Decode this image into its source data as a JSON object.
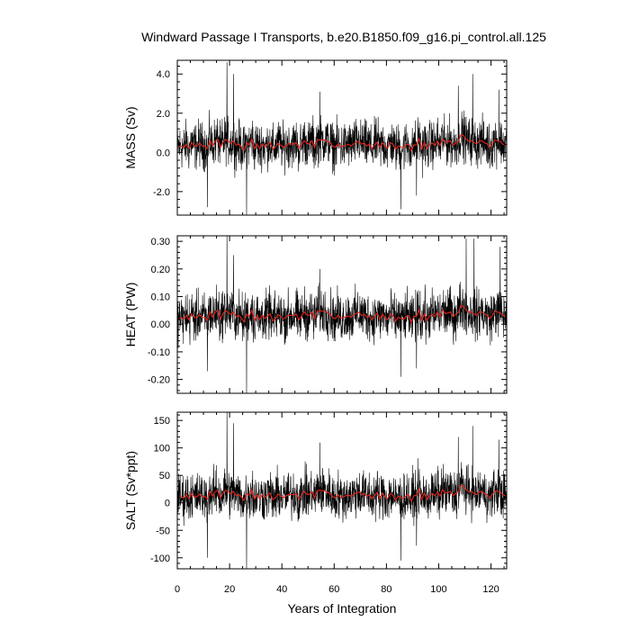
{
  "chart_data": {
    "type": "line",
    "title": "Windward Passage I Transports, b.e20.B1850.f09_g16.pi_control.all.125",
    "xlabel": "Years of Integration",
    "xlim": [
      0,
      126
    ],
    "x_ticks": [
      "0",
      "20",
      "40",
      "60",
      "80",
      "100",
      "120"
    ],
    "grid": false,
    "series_colors": {
      "monthly": "#000000",
      "annual": "#e8241c"
    },
    "panels": [
      {
        "ylabel": "MASS (Sv)",
        "ylim": [
          -3.2,
          4.7
        ],
        "y_ticks": [
          "-2.0",
          "0.0",
          "2.0",
          "4.0"
        ],
        "y_tick_values": [
          -2.0,
          0.0,
          2.0,
          4.0
        ],
        "mean": 0.4,
        "monthly_spread": 0.75,
        "extremes": [
          [
            19.0,
            4.6
          ],
          [
            21.5,
            4.0
          ],
          [
            26.5,
            -3.2
          ],
          [
            11.5,
            -2.8
          ],
          [
            85.5,
            -2.9
          ],
          [
            113.0,
            4.0
          ],
          [
            107.5,
            3.4
          ],
          [
            54.5,
            3.1
          ],
          [
            123.0,
            3.2
          ],
          [
            91.5,
            -2.2
          ]
        ],
        "annual": [
          0.28,
          0.31,
          0.25,
          0.42,
          0.2,
          0.51,
          0.32,
          0.32,
          0.47,
          0.32,
          0.33,
          0.19,
          0.61,
          0.34,
          0.57,
          0.66,
          0.25,
          0.52,
          0.67,
          0.56,
          0.47,
          0.59,
          0.36,
          0.42,
          0.3,
          0.11,
          0.48,
          0.39,
          0.68,
          0.19,
          0.43,
          0.2,
          0.44,
          0.28,
          0.39,
          0.51,
          0.16,
          0.27,
          0.47,
          0.38,
          0.26,
          0.33,
          0.44,
          0.43,
          0.42,
          0.5,
          0.21,
          0.39,
          0.6,
          0.46,
          0.42,
          0.6,
          0.25,
          0.62,
          0.65,
          0.63,
          0.63,
          0.55,
          0.5,
          0.31,
          0.27,
          0.44,
          0.29,
          0.32,
          0.37,
          0.4,
          0.33,
          0.45,
          0.52,
          0.57,
          0.42,
          0.48,
          0.33,
          0.42,
          0.2,
          0.39,
          0.53,
          0.24,
          0.49,
          0.31,
          0.22,
          0.5,
          0.41,
          0.15,
          0.33,
          0.28,
          0.23,
          0.38,
          0.42,
          0.08,
          0.38,
          0.39,
          0.7,
          0.16,
          0.51,
          0.19,
          0.38,
          0.48,
          0.37,
          0.58,
          0.35,
          0.68,
          0.52,
          0.54,
          0.59,
          0.36,
          0.48,
          0.56,
          0.91,
          0.85,
          0.68,
          0.57,
          0.6,
          0.5,
          0.43,
          0.58,
          0.59,
          0.49,
          0.44,
          0.26,
          0.43,
          0.64,
          0.59,
          0.57,
          0.42,
          0.37
        ]
      },
      {
        "ylabel": "HEAT (PW)",
        "ylim": [
          -0.25,
          0.32
        ],
        "y_ticks": [
          "-0.20",
          "-0.10",
          "0.00",
          "0.10",
          "0.20",
          "0.30"
        ],
        "y_tick_values": [
          -0.2,
          -0.1,
          0.0,
          0.1,
          0.2,
          0.3
        ],
        "mean": 0.03,
        "monthly_spread": 0.055,
        "extremes": [
          [
            19.0,
            0.32
          ],
          [
            26.5,
            -0.25
          ],
          [
            11.5,
            -0.17
          ],
          [
            110.5,
            0.31
          ],
          [
            113.5,
            0.31
          ],
          [
            85.5,
            -0.19
          ],
          [
            91.5,
            -0.16
          ],
          [
            123.5,
            0.28
          ],
          [
            21.5,
            0.25
          ],
          [
            54.5,
            0.2
          ]
        ],
        "annual": [
          0.021,
          0.023,
          0.019,
          0.032,
          0.015,
          0.038,
          0.024,
          0.024,
          0.035,
          0.024,
          0.025,
          0.014,
          0.046,
          0.026,
          0.043,
          0.05,
          0.019,
          0.039,
          0.05,
          0.042,
          0.035,
          0.044,
          0.027,
          0.032,
          0.023,
          0.008,
          0.036,
          0.029,
          0.051,
          0.014,
          0.032,
          0.015,
          0.033,
          0.021,
          0.029,
          0.038,
          0.012,
          0.02,
          0.035,
          0.028,
          0.019,
          0.025,
          0.033,
          0.032,
          0.031,
          0.037,
          0.016,
          0.029,
          0.045,
          0.035,
          0.031,
          0.045,
          0.019,
          0.047,
          0.049,
          0.047,
          0.047,
          0.041,
          0.037,
          0.023,
          0.02,
          0.033,
          0.022,
          0.024,
          0.028,
          0.03,
          0.025,
          0.034,
          0.039,
          0.043,
          0.031,
          0.036,
          0.025,
          0.031,
          0.015,
          0.029,
          0.04,
          0.018,
          0.037,
          0.023,
          0.017,
          0.037,
          0.031,
          0.011,
          0.025,
          0.021,
          0.017,
          0.028,
          0.031,
          0.006,
          0.028,
          0.029,
          0.052,
          0.012,
          0.038,
          0.014,
          0.029,
          0.036,
          0.028,
          0.044,
          0.026,
          0.051,
          0.039,
          0.04,
          0.044,
          0.027,
          0.036,
          0.042,
          0.068,
          0.064,
          0.051,
          0.043,
          0.045,
          0.037,
          0.032,
          0.044,
          0.044,
          0.037,
          0.033,
          0.02,
          0.032,
          0.048,
          0.044,
          0.042,
          0.032,
          0.028
        ]
      },
      {
        "ylabel": "SALT (Sv*ppt)",
        "ylim": [
          -120,
          165
        ],
        "y_ticks": [
          "-100",
          "-50",
          "0",
          "50",
          "100",
          "150"
        ],
        "y_tick_values": [
          -100,
          -50,
          0,
          50,
          100,
          150
        ],
        "mean": 14,
        "monthly_spread": 27,
        "extremes": [
          [
            19.0,
            165
          ],
          [
            26.5,
            -120
          ],
          [
            11.5,
            -100
          ],
          [
            85.5,
            -105
          ],
          [
            21.5,
            145
          ],
          [
            113.0,
            140
          ],
          [
            107.5,
            120
          ],
          [
            54.5,
            110
          ],
          [
            123.0,
            115
          ],
          [
            91.5,
            -78
          ]
        ],
        "annual": [
          10,
          11,
          9,
          15,
          7,
          18,
          11,
          11,
          16,
          11,
          12,
          7,
          21,
          12,
          20,
          23,
          9,
          18,
          23,
          20,
          16,
          21,
          13,
          15,
          11,
          4,
          17,
          14,
          24,
          7,
          15,
          7,
          15,
          10,
          14,
          18,
          6,
          9,
          16,
          13,
          9,
          12,
          15,
          15,
          15,
          17,
          7,
          14,
          21,
          16,
          15,
          21,
          9,
          22,
          23,
          22,
          22,
          19,
          17,
          11,
          9,
          15,
          10,
          11,
          13,
          14,
          12,
          16,
          18,
          20,
          15,
          17,
          12,
          15,
          7,
          14,
          19,
          8,
          17,
          11,
          8,
          17,
          14,
          5,
          12,
          10,
          8,
          13,
          15,
          3,
          13,
          14,
          25,
          6,
          18,
          7,
          13,
          17,
          13,
          20,
          12,
          24,
          18,
          19,
          21,
          13,
          17,
          20,
          32,
          30,
          24,
          20,
          21,
          17,
          15,
          20,
          21,
          17,
          15,
          9,
          15,
          22,
          21,
          20,
          15,
          13
        ]
      }
    ]
  }
}
